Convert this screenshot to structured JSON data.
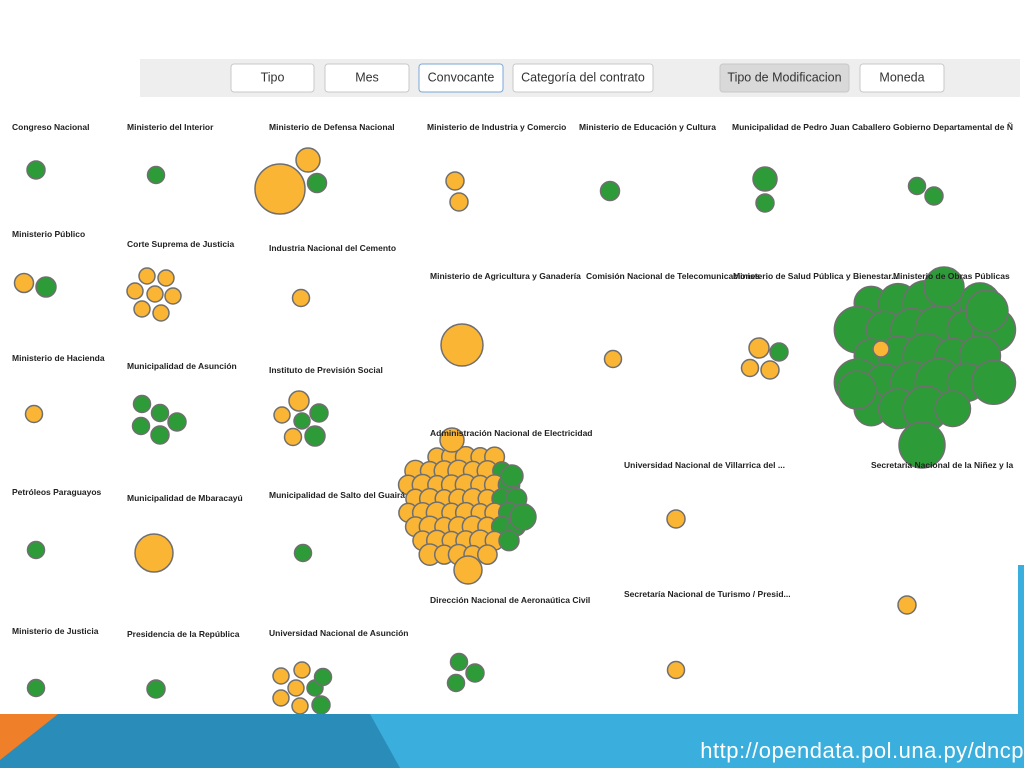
{
  "toolbar": {
    "buttons": [
      "Tipo",
      "Mes",
      "Convocante",
      "Categoría del contrato",
      "Tipo de Modificacion",
      "Moneda"
    ]
  },
  "groups": [
    "Congreso Nacional",
    "Ministerio del Interior",
    "Ministerio de Defensa Nacional",
    "Ministerio de Industria y Comercio",
    "Ministerio de Educación y Cultura",
    "Municipalidad de Pedro Juan Caballero",
    "Gobierno Departamental de Ñ",
    "Ministerio Público",
    "Corte Suprema de Justicia",
    "Industria Nacional del Cemento",
    "Ministerio de Agricultura y Ganadería",
    "Comisión Nacional de Telecomunicaciones",
    "Ministerio de Salud Pública y Bienestar...",
    "Ministerio de Obras Públicas",
    "Ministerio de Hacienda",
    "Municipalidad de Asunción",
    "Instituto de Previsión Social",
    "Administración Nacional de Electricidad",
    "Universidad Nacional de Villarrica del ...",
    "Secretaría Nacional de la Niñez y la",
    "Petróleos Paraguayos",
    "Municipalidad de Mbaracayú",
    "Municipalidad de Salto del Guairá",
    "Secretaría Nacional de Turismo / Presid...",
    "Dirección Nacional de Aeronaútica Civil",
    "Ministerio de Justicia",
    "Presidencia de la República",
    "Universidad Nacional de Asunción"
  ],
  "footer": {
    "url": "http://opendata.pol.una.py/dncp"
  }
}
